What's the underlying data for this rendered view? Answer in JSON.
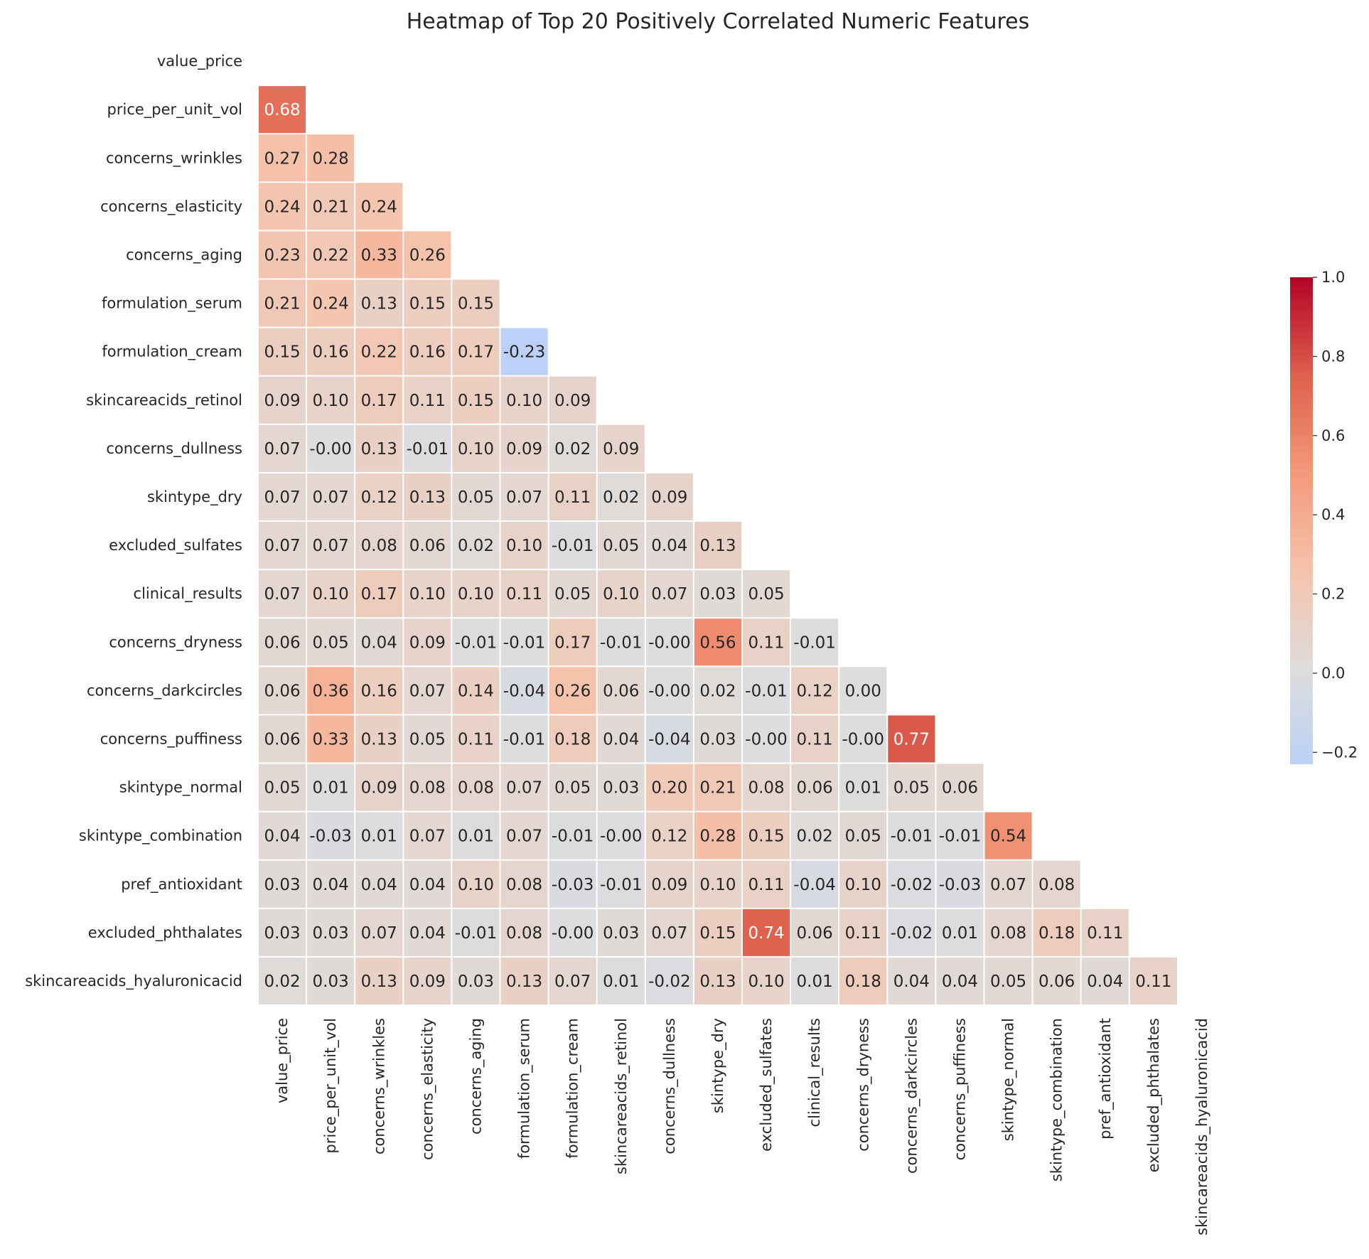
{
  "chart_data": {
    "type": "heatmap",
    "title": "Heatmap of Top 20 Positively Correlated Numeric Features",
    "xlabel": "",
    "ylabel": "",
    "mask": "upper-triangle-including-diagonal",
    "colormap": "coolwarm",
    "vmin": -0.23,
    "vmax": 1.0,
    "colorbar": {
      "ticks": [
        -0.2,
        0.0,
        0.2,
        0.4,
        0.6,
        0.8,
        1.0
      ],
      "tick_labels": [
        "−0.2",
        "0.0",
        "0.2",
        "0.4",
        "0.6",
        "0.8",
        "1.0"
      ],
      "placement": "right"
    },
    "features": [
      "value_price",
      "price_per_unit_vol",
      "concerns_wrinkles",
      "concerns_elasticity",
      "concerns_aging",
      "formulation_serum",
      "formulation_cream",
      "skincareacids_retinol",
      "concerns_dullness",
      "skintype_dry",
      "excluded_sulfates",
      "clinical_results",
      "concerns_dryness",
      "concerns_darkcircles",
      "concerns_puffiness",
      "skintype_normal",
      "skintype_combination",
      "pref_antioxidant",
      "excluded_phthalates",
      "skincareacids_hyaluronicacid"
    ],
    "values": [
      [],
      [
        0.68
      ],
      [
        0.27,
        0.28
      ],
      [
        0.24,
        0.21,
        0.24
      ],
      [
        0.23,
        0.22,
        0.33,
        0.26
      ],
      [
        0.21,
        0.24,
        0.13,
        0.15,
        0.15
      ],
      [
        0.15,
        0.16,
        0.22,
        0.16,
        0.17,
        -0.23
      ],
      [
        0.09,
        0.1,
        0.17,
        0.11,
        0.15,
        0.1,
        0.09
      ],
      [
        0.07,
        -0.001,
        0.13,
        -0.01,
        0.1,
        0.09,
        0.02,
        0.09
      ],
      [
        0.07,
        0.07,
        0.12,
        0.13,
        0.05,
        0.07,
        0.11,
        0.02,
        0.09
      ],
      [
        0.07,
        0.07,
        0.08,
        0.06,
        0.02,
        0.1,
        -0.01,
        0.05,
        0.04,
        0.13
      ],
      [
        0.07,
        0.1,
        0.17,
        0.1,
        0.1,
        0.11,
        0.05,
        0.1,
        0.07,
        0.03,
        0.05
      ],
      [
        0.06,
        0.05,
        0.04,
        0.09,
        -0.01,
        -0.01,
        0.17,
        -0.01,
        -0.001,
        0.56,
        0.11,
        -0.01
      ],
      [
        0.06,
        0.36,
        0.16,
        0.07,
        0.14,
        -0.04,
        0.26,
        0.06,
        -0.001,
        0.02,
        -0.01,
        0.12,
        0.0
      ],
      [
        0.06,
        0.33,
        0.13,
        0.05,
        0.11,
        -0.01,
        0.18,
        0.04,
        -0.04,
        0.03,
        -0.001,
        0.11,
        -0.001,
        0.77
      ],
      [
        0.05,
        0.01,
        0.09,
        0.08,
        0.08,
        0.07,
        0.05,
        0.03,
        0.2,
        0.21,
        0.08,
        0.06,
        0.01,
        0.05,
        0.06
      ],
      [
        0.04,
        -0.03,
        0.01,
        0.07,
        0.01,
        0.07,
        -0.01,
        -0.001,
        0.12,
        0.28,
        0.15,
        0.02,
        0.05,
        -0.01,
        -0.01,
        0.54
      ],
      [
        0.03,
        0.04,
        0.04,
        0.04,
        0.1,
        0.08,
        -0.03,
        -0.01,
        0.09,
        0.1,
        0.11,
        -0.04,
        0.1,
        -0.02,
        -0.03,
        0.07,
        0.08
      ],
      [
        0.03,
        0.03,
        0.07,
        0.04,
        -0.01,
        0.08,
        -0.001,
        0.03,
        0.07,
        0.15,
        0.74,
        0.06,
        0.11,
        -0.02,
        0.01,
        0.08,
        0.18,
        0.11
      ],
      [
        0.02,
        0.03,
        0.13,
        0.09,
        0.03,
        0.13,
        0.07,
        0.01,
        -0.02,
        0.13,
        0.1,
        0.01,
        0.18,
        0.04,
        0.04,
        0.05,
        0.06,
        0.04,
        0.11
      ]
    ]
  }
}
